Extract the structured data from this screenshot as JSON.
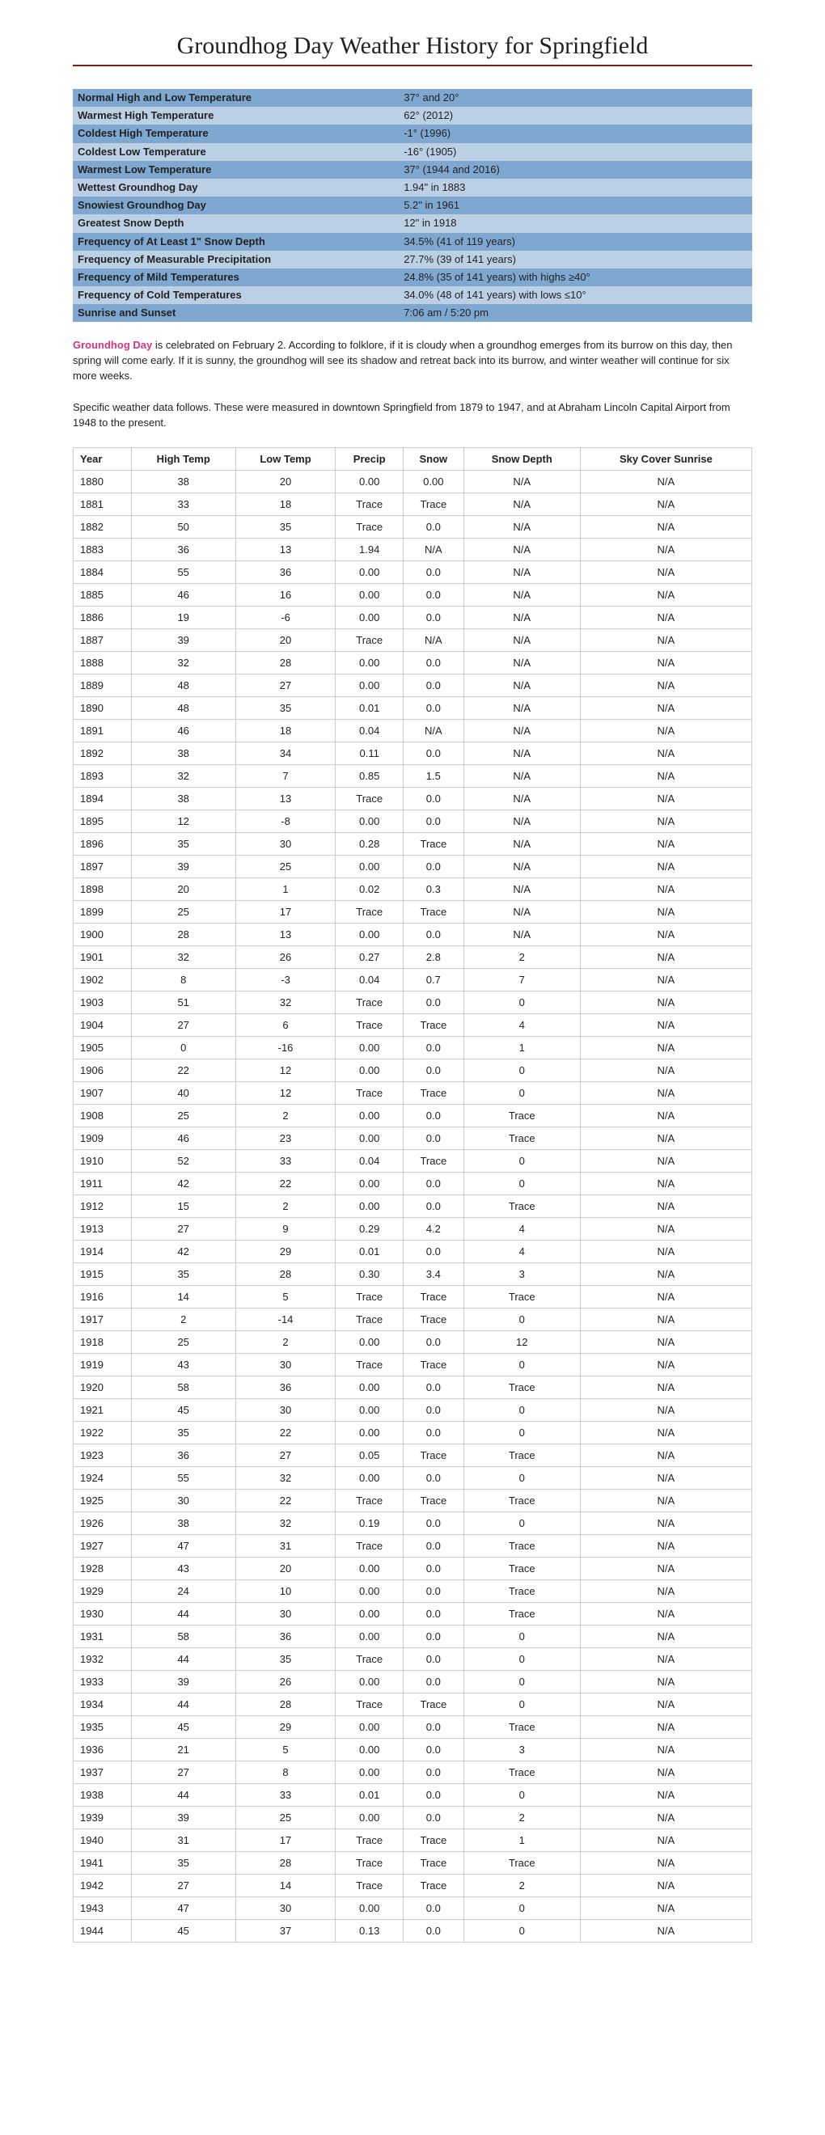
{
  "title": "Groundhog Day Weather History for Springfield",
  "summary": {
    "rows": [
      {
        "label": "Normal High and Low Temperature",
        "value": "37° and 20°"
      },
      {
        "label": "Warmest High Temperature",
        "value": "62° (2012)"
      },
      {
        "label": "Coldest High Temperature",
        "value": "-1° (1996)"
      },
      {
        "label": "Coldest Low Temperature",
        "value": "-16° (1905)"
      },
      {
        "label": "Warmest Low Temperature",
        "value": "37° (1944 and 2016)"
      },
      {
        "label": "Wettest Groundhog Day",
        "value": "1.94\" in 1883"
      },
      {
        "label": "Snowiest Groundhog Day",
        "value": "5.2\" in 1961"
      },
      {
        "label": "Greatest Snow Depth",
        "value": "12\" in 1918"
      },
      {
        "label": "Frequency of At Least 1\" Snow Depth",
        "value": "34.5% (41 of 119 years)"
      },
      {
        "label": "Frequency of Measurable Precipitation",
        "value": "27.7% (39 of 141 years)"
      },
      {
        "label": "Frequency of Mild Temperatures",
        "value": "24.8% (35 of 141 years) with highs ≥40°"
      },
      {
        "label": "Frequency of Cold Temperatures",
        "value": "34.0% (48 of 141 years) with lows ≤10°"
      },
      {
        "label": "Sunrise and Sunset",
        "value": "7:06 am / 5:20 pm"
      }
    ],
    "row_colors": {
      "dark": "#7fa8d1",
      "light": "#bcd0e5"
    }
  },
  "paragraph1": {
    "highlight": "Groundhog Day",
    "text": " is celebrated on February 2. According to folklore, if it is cloudy when a groundhog emerges from its burrow on this day, then spring will come early. If it is sunny, the groundhog will see its shadow and retreat back into its burrow, and winter weather will continue for six more weeks."
  },
  "paragraph2": "Specific weather data follows. These were measured in downtown Springfield from 1879 to 1947, and at Abraham Lincoln Capital Airport from 1948 to the present.",
  "dataTable": {
    "columns": [
      "Year",
      "High Temp",
      "Low Temp",
      "Precip",
      "Snow",
      "Snow Depth",
      "Sky Cover Sunrise"
    ],
    "rows": [
      [
        "1880",
        "38",
        "20",
        "0.00",
        "0.00",
        "N/A",
        "N/A"
      ],
      [
        "1881",
        "33",
        "18",
        "Trace",
        "Trace",
        "N/A",
        "N/A"
      ],
      [
        "1882",
        "50",
        "35",
        "Trace",
        "0.0",
        "N/A",
        "N/A"
      ],
      [
        "1883",
        "36",
        "13",
        "1.94",
        "N/A",
        "N/A",
        "N/A"
      ],
      [
        "1884",
        "55",
        "36",
        "0.00",
        "0.0",
        "N/A",
        "N/A"
      ],
      [
        "1885",
        "46",
        "16",
        "0.00",
        "0.0",
        "N/A",
        "N/A"
      ],
      [
        "1886",
        "19",
        "-6",
        "0.00",
        "0.0",
        "N/A",
        "N/A"
      ],
      [
        "1887",
        "39",
        "20",
        "Trace",
        "N/A",
        "N/A",
        "N/A"
      ],
      [
        "1888",
        "32",
        "28",
        "0.00",
        "0.0",
        "N/A",
        "N/A"
      ],
      [
        "1889",
        "48",
        "27",
        "0.00",
        "0.0",
        "N/A",
        "N/A"
      ],
      [
        "1890",
        "48",
        "35",
        "0.01",
        "0.0",
        "N/A",
        "N/A"
      ],
      [
        "1891",
        "46",
        "18",
        "0.04",
        "N/A",
        "N/A",
        "N/A"
      ],
      [
        "1892",
        "38",
        "34",
        "0.11",
        "0.0",
        "N/A",
        "N/A"
      ],
      [
        "1893",
        "32",
        "7",
        "0.85",
        "1.5",
        "N/A",
        "N/A"
      ],
      [
        "1894",
        "38",
        "13",
        "Trace",
        "0.0",
        "N/A",
        "N/A"
      ],
      [
        "1895",
        "12",
        "-8",
        "0.00",
        "0.0",
        "N/A",
        "N/A"
      ],
      [
        "1896",
        "35",
        "30",
        "0.28",
        "Trace",
        "N/A",
        "N/A"
      ],
      [
        "1897",
        "39",
        "25",
        "0.00",
        "0.0",
        "N/A",
        "N/A"
      ],
      [
        "1898",
        "20",
        "1",
        "0.02",
        "0.3",
        "N/A",
        "N/A"
      ],
      [
        "1899",
        "25",
        "17",
        "Trace",
        "Trace",
        "N/A",
        "N/A"
      ],
      [
        "1900",
        "28",
        "13",
        "0.00",
        "0.0",
        "N/A",
        "N/A"
      ],
      [
        "1901",
        "32",
        "26",
        "0.27",
        "2.8",
        "2",
        "N/A"
      ],
      [
        "1902",
        "8",
        "-3",
        "0.04",
        "0.7",
        "7",
        "N/A"
      ],
      [
        "1903",
        "51",
        "32",
        "Trace",
        "0.0",
        "0",
        "N/A"
      ],
      [
        "1904",
        "27",
        "6",
        "Trace",
        "Trace",
        "4",
        "N/A"
      ],
      [
        "1905",
        "0",
        "-16",
        "0.00",
        "0.0",
        "1",
        "N/A"
      ],
      [
        "1906",
        "22",
        "12",
        "0.00",
        "0.0",
        "0",
        "N/A"
      ],
      [
        "1907",
        "40",
        "12",
        "Trace",
        "Trace",
        "0",
        "N/A"
      ],
      [
        "1908",
        "25",
        "2",
        "0.00",
        "0.0",
        "Trace",
        "N/A"
      ],
      [
        "1909",
        "46",
        "23",
        "0.00",
        "0.0",
        "Trace",
        "N/A"
      ],
      [
        "1910",
        "52",
        "33",
        "0.04",
        "Trace",
        "0",
        "N/A"
      ],
      [
        "1911",
        "42",
        "22",
        "0.00",
        "0.0",
        "0",
        "N/A"
      ],
      [
        "1912",
        "15",
        "2",
        "0.00",
        "0.0",
        "Trace",
        "N/A"
      ],
      [
        "1913",
        "27",
        "9",
        "0.29",
        "4.2",
        "4",
        "N/A"
      ],
      [
        "1914",
        "42",
        "29",
        "0.01",
        "0.0",
        "4",
        "N/A"
      ],
      [
        "1915",
        "35",
        "28",
        "0.30",
        "3.4",
        "3",
        "N/A"
      ],
      [
        "1916",
        "14",
        "5",
        "Trace",
        "Trace",
        "Trace",
        "N/A"
      ],
      [
        "1917",
        "2",
        "-14",
        "Trace",
        "Trace",
        "0",
        "N/A"
      ],
      [
        "1918",
        "25",
        "2",
        "0.00",
        "0.0",
        "12",
        "N/A"
      ],
      [
        "1919",
        "43",
        "30",
        "Trace",
        "Trace",
        "0",
        "N/A"
      ],
      [
        "1920",
        "58",
        "36",
        "0.00",
        "0.0",
        "Trace",
        "N/A"
      ],
      [
        "1921",
        "45",
        "30",
        "0.00",
        "0.0",
        "0",
        "N/A"
      ],
      [
        "1922",
        "35",
        "22",
        "0.00",
        "0.0",
        "0",
        "N/A"
      ],
      [
        "1923",
        "36",
        "27",
        "0.05",
        "Trace",
        "Trace",
        "N/A"
      ],
      [
        "1924",
        "55",
        "32",
        "0.00",
        "0.0",
        "0",
        "N/A"
      ],
      [
        "1925",
        "30",
        "22",
        "Trace",
        "Trace",
        "Trace",
        "N/A"
      ],
      [
        "1926",
        "38",
        "32",
        "0.19",
        "0.0",
        "0",
        "N/A"
      ],
      [
        "1927",
        "47",
        "31",
        "Trace",
        "0.0",
        "Trace",
        "N/A"
      ],
      [
        "1928",
        "43",
        "20",
        "0.00",
        "0.0",
        "Trace",
        "N/A"
      ],
      [
        "1929",
        "24",
        "10",
        "0.00",
        "0.0",
        "Trace",
        "N/A"
      ],
      [
        "1930",
        "44",
        "30",
        "0.00",
        "0.0",
        "Trace",
        "N/A"
      ],
      [
        "1931",
        "58",
        "36",
        "0.00",
        "0.0",
        "0",
        "N/A"
      ],
      [
        "1932",
        "44",
        "35",
        "Trace",
        "0.0",
        "0",
        "N/A"
      ],
      [
        "1933",
        "39",
        "26",
        "0.00",
        "0.0",
        "0",
        "N/A"
      ],
      [
        "1934",
        "44",
        "28",
        "Trace",
        "Trace",
        "0",
        "N/A"
      ],
      [
        "1935",
        "45",
        "29",
        "0.00",
        "0.0",
        "Trace",
        "N/A"
      ],
      [
        "1936",
        "21",
        "5",
        "0.00",
        "0.0",
        "3",
        "N/A"
      ],
      [
        "1937",
        "27",
        "8",
        "0.00",
        "0.0",
        "Trace",
        "N/A"
      ],
      [
        "1938",
        "44",
        "33",
        "0.01",
        "0.0",
        "0",
        "N/A"
      ],
      [
        "1939",
        "39",
        "25",
        "0.00",
        "0.0",
        "2",
        "N/A"
      ],
      [
        "1940",
        "31",
        "17",
        "Trace",
        "Trace",
        "1",
        "N/A"
      ],
      [
        "1941",
        "35",
        "28",
        "Trace",
        "Trace",
        "Trace",
        "N/A"
      ],
      [
        "1942",
        "27",
        "14",
        "Trace",
        "Trace",
        "2",
        "N/A"
      ],
      [
        "1943",
        "47",
        "30",
        "0.00",
        "0.0",
        "0",
        "N/A"
      ],
      [
        "1944",
        "45",
        "37",
        "0.13",
        "0.0",
        "0",
        "N/A"
      ]
    ]
  }
}
